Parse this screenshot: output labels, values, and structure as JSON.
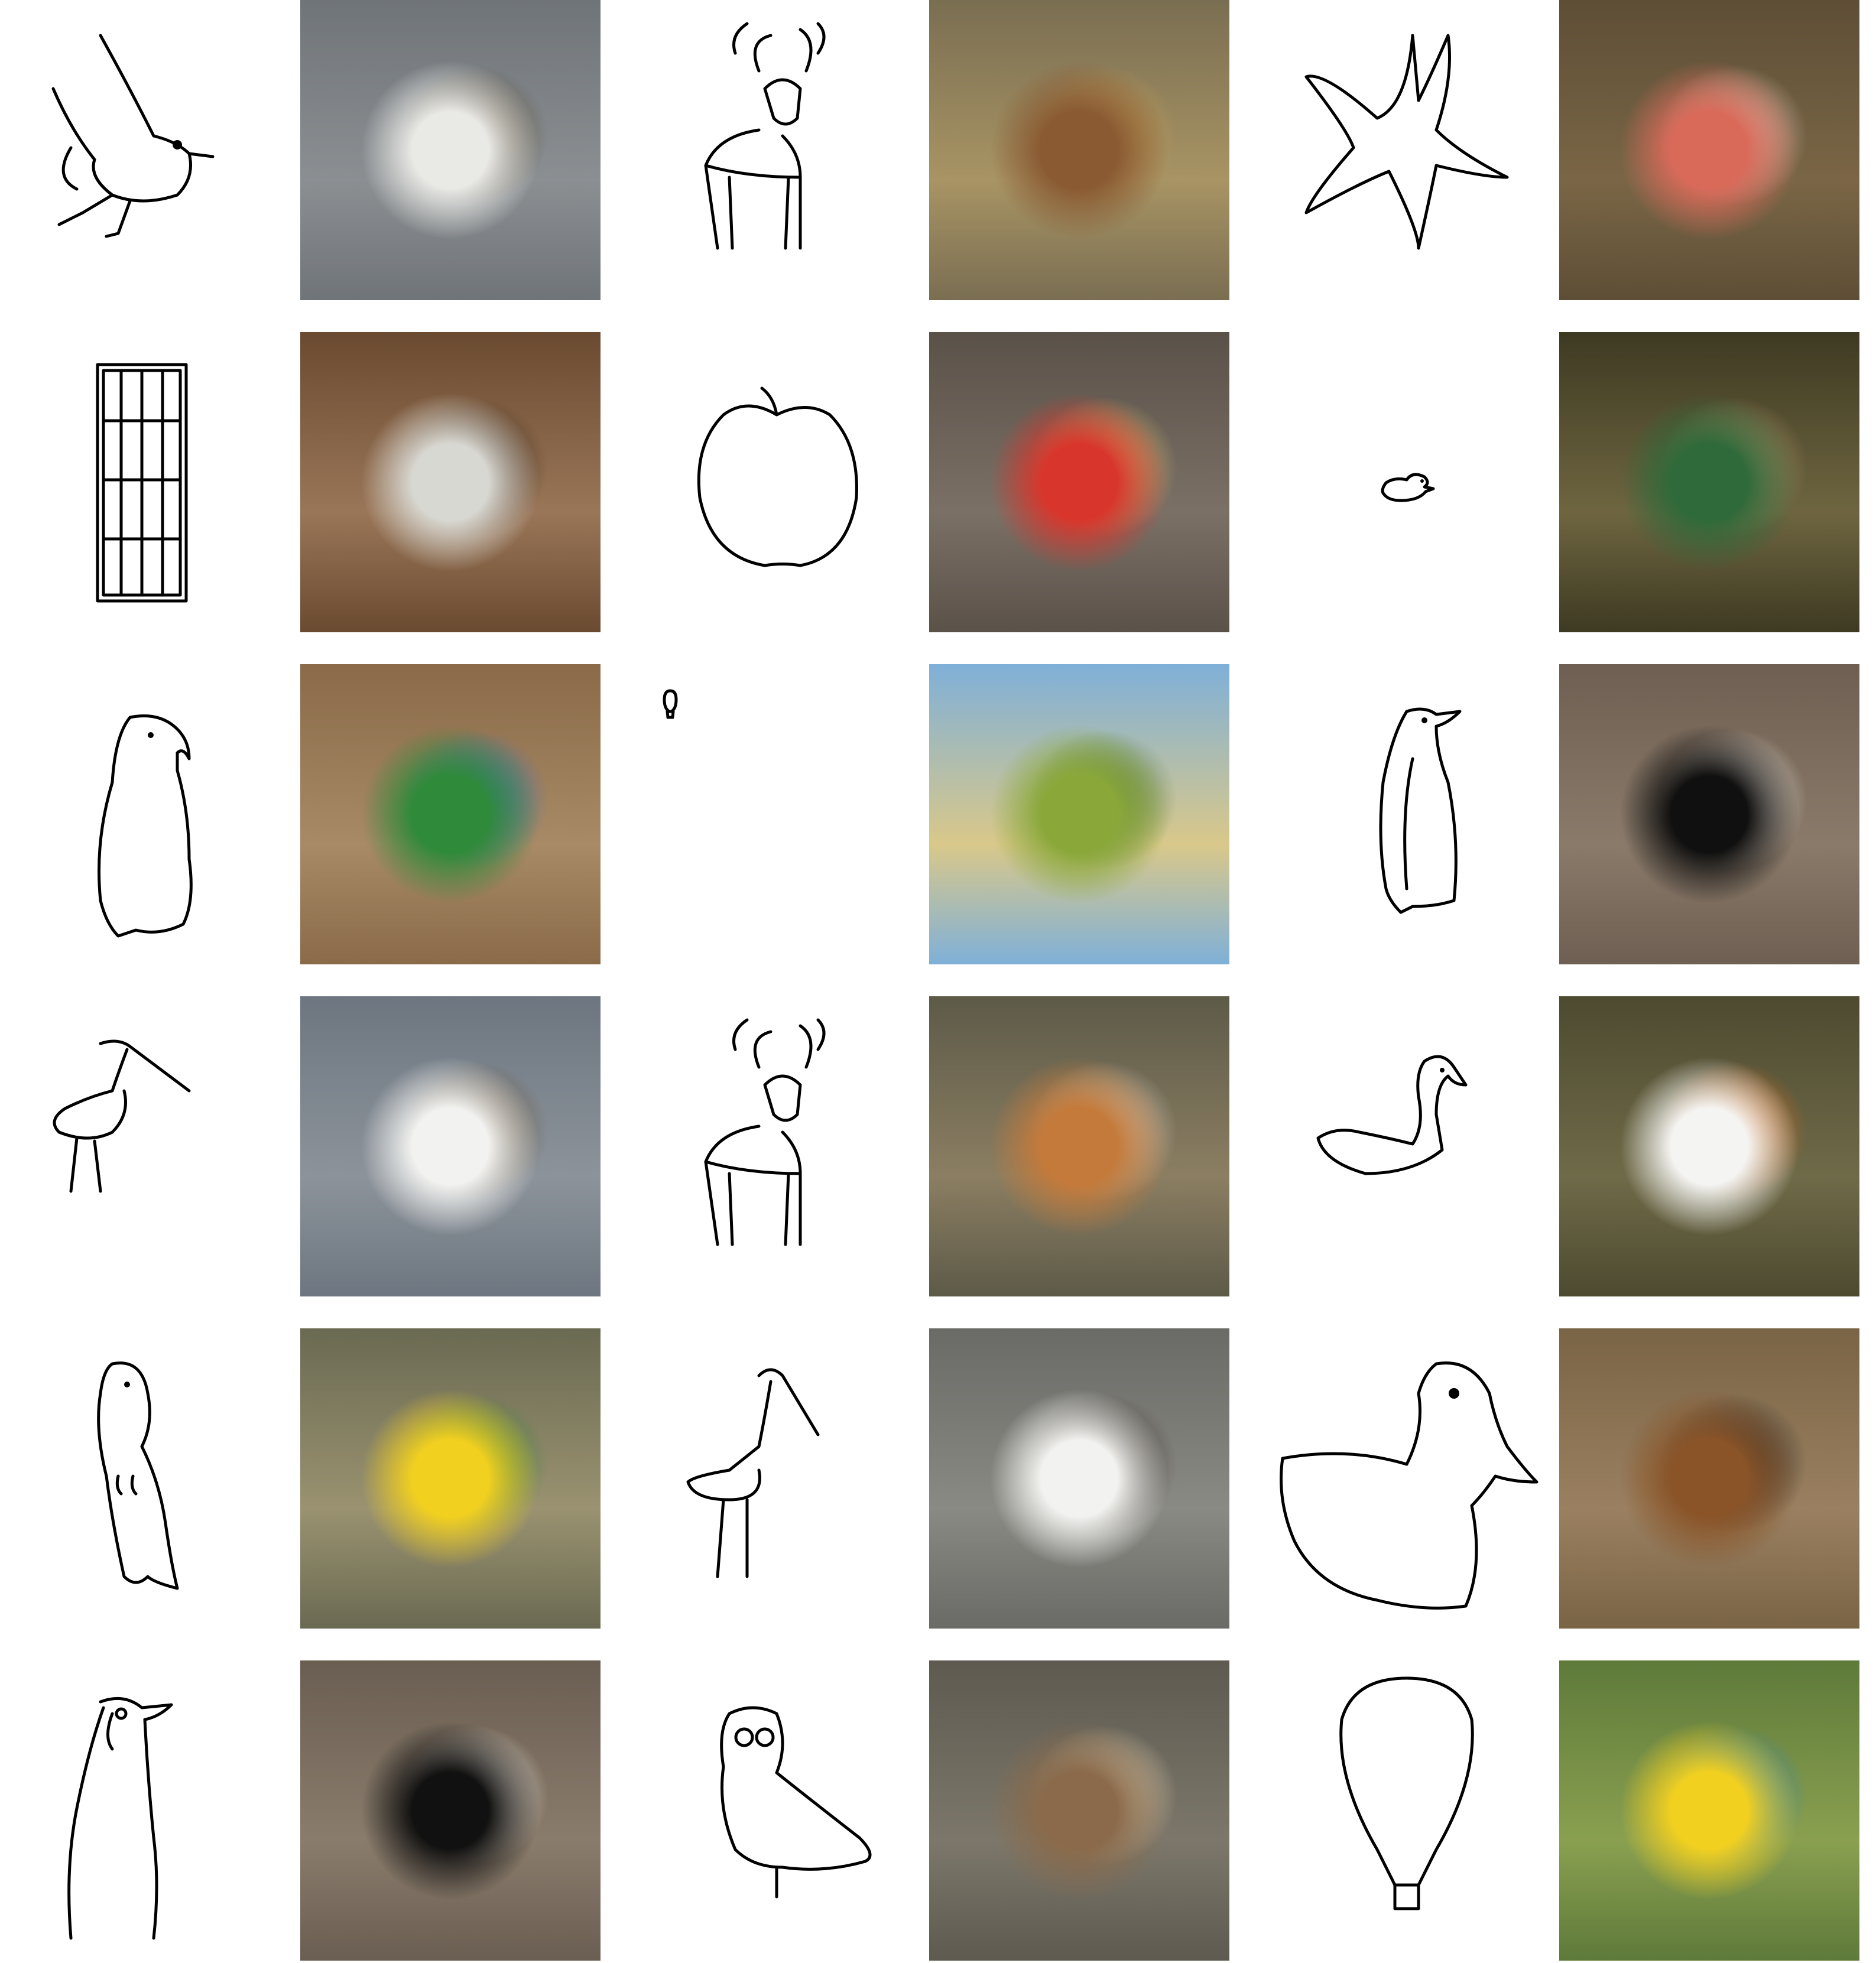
{
  "pairs": [
    {
      "subject": "seabird",
      "photo_palette": [
        "#6f7478",
        "#8b8f92",
        "#e9e9e6",
        "#5a4a2d"
      ]
    },
    {
      "subject": "deer",
      "photo_palette": [
        "#7a6e52",
        "#a89464",
        "#8a5a32",
        "#c29a52"
      ]
    },
    {
      "subject": "starfish",
      "photo_palette": [
        "#5e4e36",
        "#7a6646",
        "#d96a5a",
        "#f0d8c8"
      ]
    },
    {
      "subject": "window",
      "photo_palette": [
        "#6a4a30",
        "#9a7658",
        "#d8d8d2",
        "#3b2a1c"
      ]
    },
    {
      "subject": "apple",
      "photo_palette": [
        "#5a5148",
        "#7b7066",
        "#d8362c",
        "#e8d070"
      ]
    },
    {
      "subject": "duck",
      "photo_palette": [
        "#3e3a22",
        "#6e6540",
        "#2f6a3a",
        "#b89b70"
      ]
    },
    {
      "subject": "parrot",
      "photo_palette": [
        "#8a6a48",
        "#a88a66",
        "#2f8a3a",
        "#2a6ec8"
      ]
    },
    {
      "subject": "hot-air-balloon",
      "photo_palette": [
        "#7fb0d8",
        "#d9c88a",
        "#8aa83a",
        "#3f6a28"
      ]
    },
    {
      "subject": "penguin",
      "photo_palette": [
        "#6e5f52",
        "#8a7a6a",
        "#101010",
        "#f2f0ea"
      ]
    },
    {
      "subject": "wading-bird",
      "photo_palette": [
        "#6d7680",
        "#8c939a",
        "#f2f2f0",
        "#6a5230"
      ]
    },
    {
      "subject": "deer",
      "photo_palette": [
        "#5d5a48",
        "#8b7e62",
        "#c47a3a",
        "#e6ddd0"
      ]
    },
    {
      "subject": "swan",
      "photo_palette": [
        "#4e4a30",
        "#6f6a48",
        "#f4f4f2",
        "#e8701e"
      ]
    },
    {
      "subject": "parrot",
      "photo_palette": [
        "#6a6a52",
        "#9a9270",
        "#f2d020",
        "#2e8a36"
      ]
    },
    {
      "subject": "wading-bird",
      "photo_palette": [
        "#6a6a66",
        "#8a8a84",
        "#f2f2f0",
        "#3a3026"
      ]
    },
    {
      "subject": "duck",
      "photo_palette": [
        "#7a6446",
        "#9a8060",
        "#8a5428",
        "#1a1a1a"
      ]
    },
    {
      "subject": "penguin",
      "photo_palette": [
        "#6a5e52",
        "#8a7c6c",
        "#111111",
        "#f4f2ec"
      ]
    },
    {
      "subject": "owl",
      "photo_palette": [
        "#5e5a50",
        "#7c776a",
        "#8a6a4a",
        "#f0e0c0"
      ]
    },
    {
      "subject": "hot-air-balloon",
      "photo_palette": [
        "#5e7a3a",
        "#8aa050",
        "#f2d020",
        "#2a86c8"
      ]
    }
  ]
}
